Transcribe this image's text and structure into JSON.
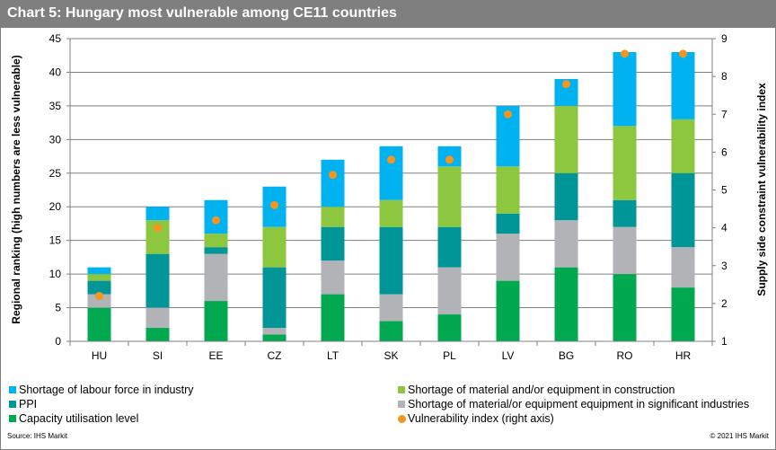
{
  "header": {
    "title": "Chart 5: Hungary most vulnerable among CE11 countries"
  },
  "footer": {
    "source": "Source:  IHS Markit",
    "copyright": "© 2021  IHS Markit"
  },
  "chart_data": {
    "type": "bar",
    "stacked": true,
    "title": "Chart 5: Hungary most vulnerable among CE11 countries",
    "xlabel": "",
    "ylabel": "Regional ranking (high numbers are less vulnerable)",
    "y2label": "Supply side constraint vulnerability index",
    "ylim": [
      0,
      45
    ],
    "yticks": [
      0,
      5,
      10,
      15,
      20,
      25,
      30,
      35,
      40,
      45
    ],
    "y2lim": [
      1,
      9
    ],
    "y2ticks": [
      1,
      2,
      3,
      4,
      5,
      6,
      7,
      8,
      9
    ],
    "grid": true,
    "legend_position": "bottom",
    "categories": [
      "HU",
      "SI",
      "EE",
      "CZ",
      "LT",
      "SK",
      "PL",
      "LV",
      "BG",
      "RO",
      "HR"
    ],
    "series": [
      {
        "name": "Capacity utilisation level",
        "kind": "bar",
        "color": "#00a84f",
        "values": [
          5,
          2,
          6,
          1,
          7,
          3,
          4,
          9,
          11,
          10,
          8
        ]
      },
      {
        "name": "Shortage of material/or equipment equipment in significant industries",
        "kind": "bar",
        "color": "#b1b3b6",
        "values": [
          2,
          3,
          7,
          1,
          5,
          4,
          7,
          7,
          7,
          7,
          6
        ]
      },
      {
        "name": "PPI",
        "kind": "bar",
        "color": "#009597",
        "values": [
          2,
          8,
          1,
          9,
          5,
          10,
          6,
          3,
          7,
          4,
          11
        ]
      },
      {
        "name": "Shortage of material and/or equipment in construction",
        "kind": "bar",
        "color": "#8dc63f",
        "values": [
          1,
          5,
          2,
          6,
          3,
          4,
          9,
          7,
          10,
          11,
          8
        ]
      },
      {
        "name": "Shortage of labour force in industry",
        "kind": "bar",
        "color": "#00b2ef",
        "values": [
          1,
          2,
          5,
          6,
          7,
          8,
          3,
          9,
          4,
          11,
          10
        ]
      },
      {
        "name": "Vulnerability index (right axis)",
        "kind": "scatter",
        "axis": "right",
        "color": "#f7941d",
        "values": [
          2.2,
          4.0,
          4.2,
          4.6,
          5.4,
          5.8,
          5.8,
          7.0,
          7.8,
          8.6,
          8.6
        ]
      }
    ]
  },
  "legend": {
    "items": [
      {
        "label": "Shortage of labour force in industry",
        "color": "#00b2ef",
        "shape": "square"
      },
      {
        "label": "Shortage of material and/or equipment in construction",
        "color": "#8dc63f",
        "shape": "square"
      },
      {
        "label": "PPI",
        "color": "#009597",
        "shape": "square"
      },
      {
        "label": "Shortage of material/or equipment equipment in significant industries",
        "color": "#b1b3b6",
        "shape": "square"
      },
      {
        "label": "Capacity utilisation level",
        "color": "#00a84f",
        "shape": "square"
      },
      {
        "label": "Vulnerability index (right axis)",
        "color": "#f7941d",
        "shape": "circle"
      }
    ]
  }
}
